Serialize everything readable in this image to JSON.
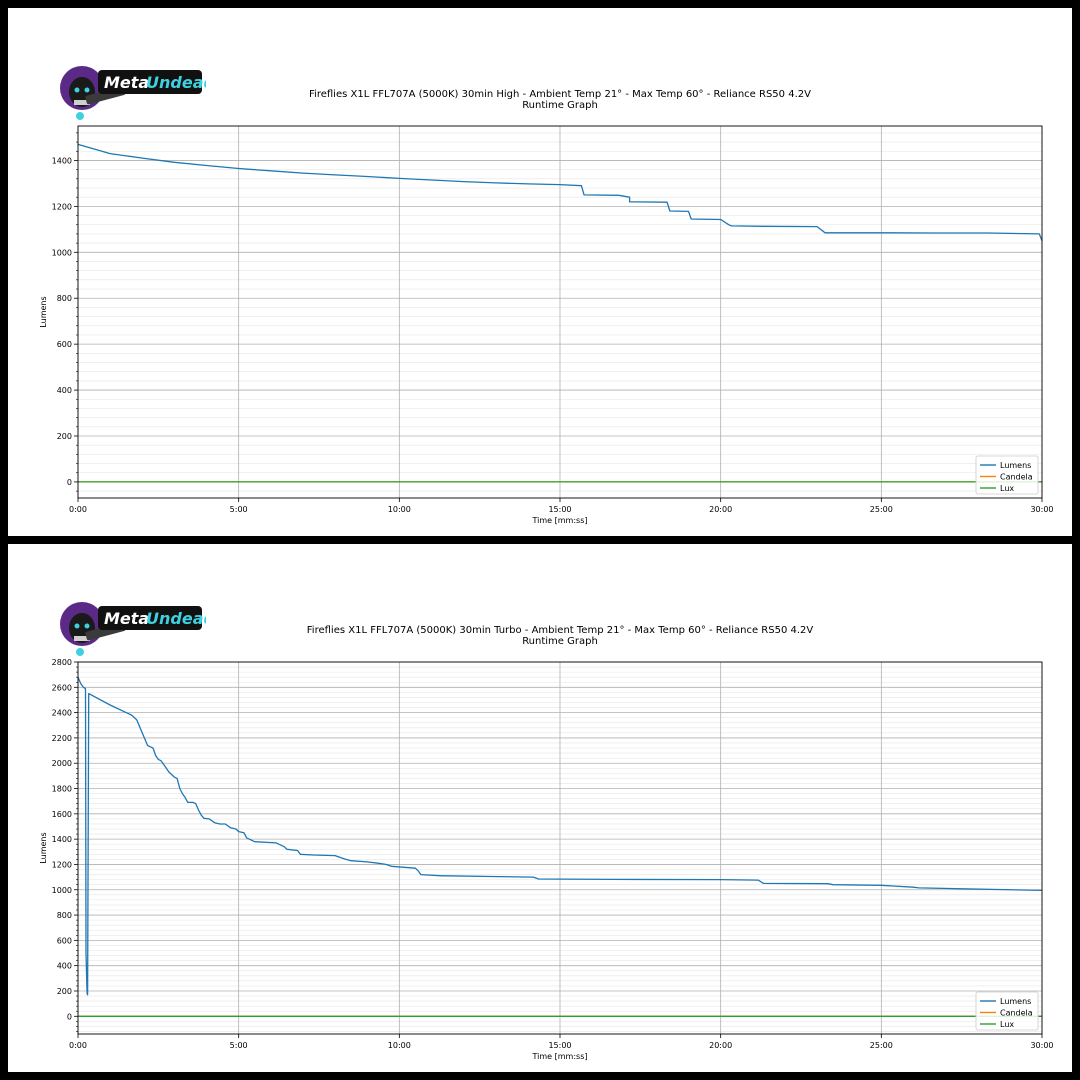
{
  "brand": {
    "name_part1": "Meta",
    "name_part2": "Undead",
    "color_purple": "#6a2c9e",
    "color_cyan": "#3fd0e0"
  },
  "colors": {
    "lumens": "#1f77b4",
    "candela": "#ff7f0e",
    "lux": "#2ca02c",
    "grid": "#b0b0b0",
    "minor_grid": "#e6e6e6"
  },
  "chart_data": [
    {
      "type": "line",
      "title": "Fireflies X1L FFL707A (5000K) 30min High - Ambient Temp 21° - Max Temp 60° - Reliance RS50 4.2V",
      "subtitle": "Runtime Graph",
      "xlabel": "Time [mm:ss]",
      "ylabel": "Lumens",
      "xlim": [
        0,
        1800
      ],
      "ylim": [
        -70,
        1550
      ],
      "x_ticks": [
        0,
        300,
        600,
        900,
        1200,
        1500,
        1800
      ],
      "x_tick_labels": [
        "0:00",
        "5:00",
        "10:00",
        "15:00",
        "20:00",
        "25:00",
        "30:00"
      ],
      "y_ticks": [
        0,
        200,
        400,
        600,
        800,
        1000,
        1200,
        1400
      ],
      "y_tick_labels": [
        "0",
        "200",
        "400",
        "600",
        "800",
        "1000",
        "1200",
        "1400"
      ],
      "grid": true,
      "legend": {
        "position": "bottom-right",
        "entries": [
          "Lumens",
          "Candela",
          "Lux"
        ]
      },
      "series": [
        {
          "name": "Lumens",
          "x": [
            0,
            30,
            60,
            120,
            180,
            240,
            300,
            360,
            420,
            480,
            540,
            600,
            660,
            720,
            780,
            840,
            900,
            940,
            945,
            1010,
            1030,
            1030,
            1100,
            1105,
            1140,
            1145,
            1200,
            1215,
            1220,
            1280,
            1380,
            1395,
            1500,
            1600,
            1700,
            1795,
            1800
          ],
          "y": [
            1470,
            1450,
            1430,
            1410,
            1392,
            1378,
            1365,
            1355,
            1345,
            1337,
            1330,
            1322,
            1315,
            1308,
            1302,
            1298,
            1295,
            1290,
            1250,
            1248,
            1240,
            1220,
            1218,
            1180,
            1178,
            1145,
            1143,
            1120,
            1115,
            1113,
            1112,
            1085,
            1085,
            1084,
            1084,
            1080,
            1050
          ]
        },
        {
          "name": "Candela",
          "x": [
            0,
            1800
          ],
          "y": [
            0,
            0
          ]
        },
        {
          "name": "Lux",
          "x": [
            0,
            1800
          ],
          "y": [
            0,
            0
          ]
        }
      ]
    },
    {
      "type": "line",
      "title": "Fireflies X1L FFL707A (5000K) 30min Turbo - Ambient Temp 21° - Max Temp 60° - Reliance RS50 4.2V",
      "subtitle": "Runtime Graph",
      "xlabel": "Time [mm:ss]",
      "ylabel": "Lumens",
      "xlim": [
        0,
        1800
      ],
      "ylim": [
        -140,
        2800
      ],
      "x_ticks": [
        0,
        300,
        600,
        900,
        1200,
        1500,
        1800
      ],
      "x_tick_labels": [
        "0:00",
        "5:00",
        "10:00",
        "15:00",
        "20:00",
        "25:00",
        "30:00"
      ],
      "y_ticks": [
        0,
        200,
        400,
        600,
        800,
        1000,
        1200,
        1400,
        1600,
        1800,
        2000,
        2200,
        2400,
        2600,
        2800
      ],
      "y_tick_labels": [
        "0",
        "200",
        "400",
        "600",
        "800",
        "1000",
        "1200",
        "1400",
        "1600",
        "1800",
        "2000",
        "2200",
        "2400",
        "2600",
        "2800"
      ],
      "grid": true,
      "legend": {
        "position": "bottom-right",
        "entries": [
          "Lumens",
          "Candela",
          "Lux"
        ]
      },
      "series": [
        {
          "name": "Lumens",
          "x": [
            0,
            5,
            10,
            14,
            15,
            17,
            18,
            20,
            60,
            100,
            108,
            110,
            130,
            135,
            140,
            145,
            150,
            155,
            160,
            170,
            175,
            180,
            185,
            190,
            195,
            200,
            205,
            215,
            220,
            225,
            230,
            235,
            245,
            255,
            265,
            275,
            285,
            295,
            300,
            310,
            315,
            330,
            370,
            375,
            385,
            390,
            410,
            415,
            440,
            480,
            500,
            510,
            540,
            560,
            575,
            585,
            630,
            635,
            640,
            680,
            690,
            770,
            850,
            860,
            1000,
            1200,
            1270,
            1280,
            1400,
            1410,
            1500,
            1560,
            1570,
            1800
          ],
          "y": [
            2680,
            2630,
            2600,
            2590,
            500,
            180,
            170,
            2550,
            2460,
            2380,
            2350,
            2340,
            2140,
            2130,
            2120,
            2060,
            2030,
            2020,
            1990,
            1930,
            1910,
            1890,
            1880,
            1800,
            1760,
            1730,
            1690,
            1690,
            1680,
            1630,
            1590,
            1565,
            1560,
            1530,
            1520,
            1520,
            1490,
            1480,
            1460,
            1450,
            1410,
            1380,
            1370,
            1360,
            1340,
            1320,
            1310,
            1280,
            1275,
            1270,
            1240,
            1230,
            1220,
            1210,
            1200,
            1185,
            1170,
            1150,
            1120,
            1110,
            1110,
            1105,
            1100,
            1085,
            1082,
            1080,
            1076,
            1050,
            1048,
            1040,
            1035,
            1020,
            1015,
            995
          ]
        },
        {
          "name": "Candela",
          "x": [
            0,
            1800
          ],
          "y": [
            0,
            0
          ]
        },
        {
          "name": "Lux",
          "x": [
            0,
            1800
          ],
          "y": [
            0,
            0
          ]
        }
      ]
    }
  ]
}
